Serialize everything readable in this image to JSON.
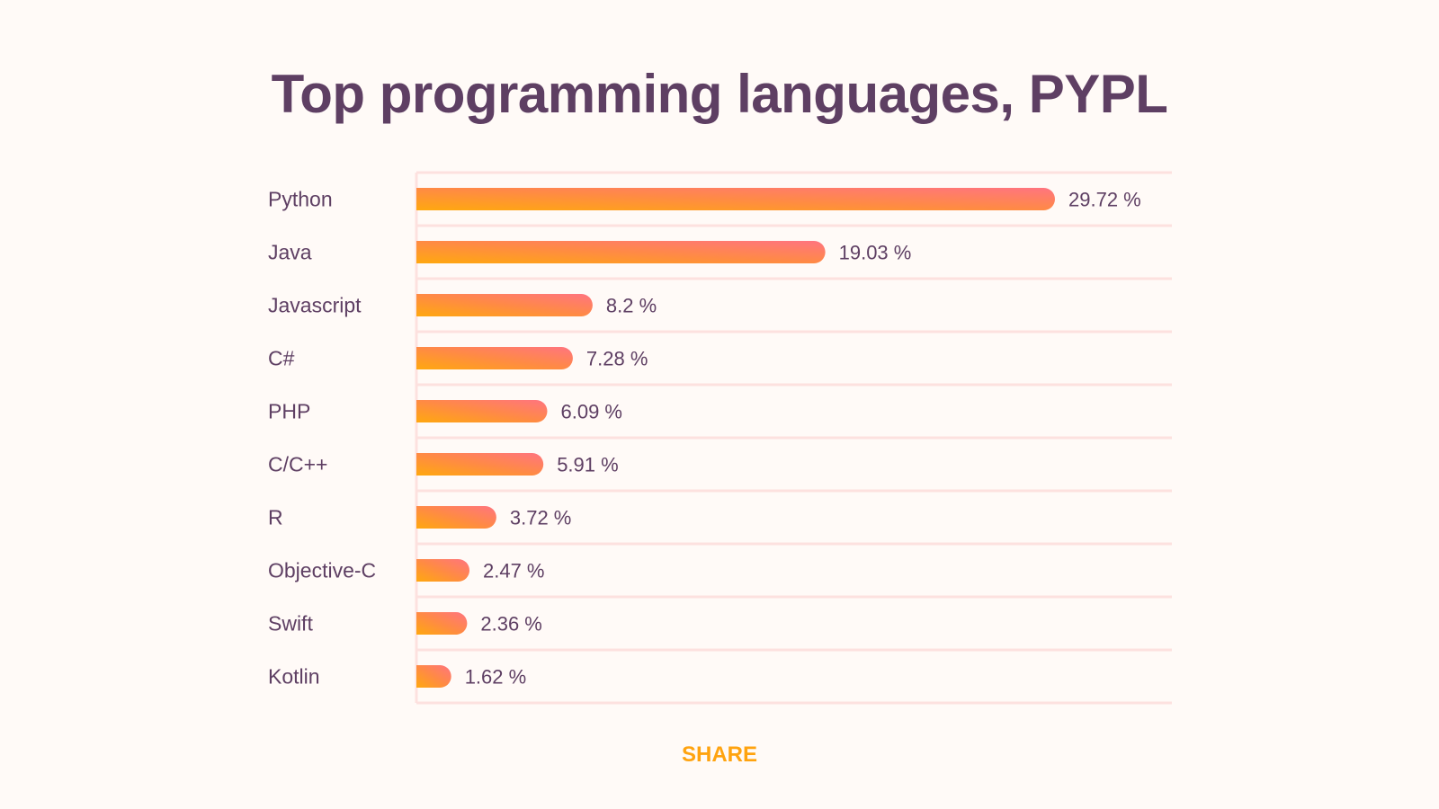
{
  "chart_data": {
    "type": "bar",
    "orientation": "horizontal",
    "title": "Top programming languages, PYPL",
    "categories": [
      "Python",
      "Java",
      "Javascript",
      "C#",
      "PHP",
      "C/C++",
      "R",
      "Objective-C",
      "Swift",
      "Kotlin"
    ],
    "values": [
      29.72,
      19.03,
      8.2,
      7.28,
      6.09,
      5.91,
      3.72,
      2.47,
      2.36,
      1.62
    ],
    "value_labels": [
      "29.72 %",
      "19.03 %",
      "8.2 %",
      "7.28 %",
      "6.09 %",
      "5.91 %",
      "3.72 %",
      "2.47 %",
      "2.36 %",
      "1.62 %"
    ],
    "xlabel": "",
    "ylabel": "",
    "xlim": [
      0,
      34
    ],
    "grid": true,
    "colors": {
      "gradient_start": "#ffaa1a",
      "gradient_mid": "#ff8a45",
      "gradient_end": "#ff7078",
      "grid": "#fde1df",
      "text": "#5e3f63"
    }
  },
  "share_label": "SHARE"
}
